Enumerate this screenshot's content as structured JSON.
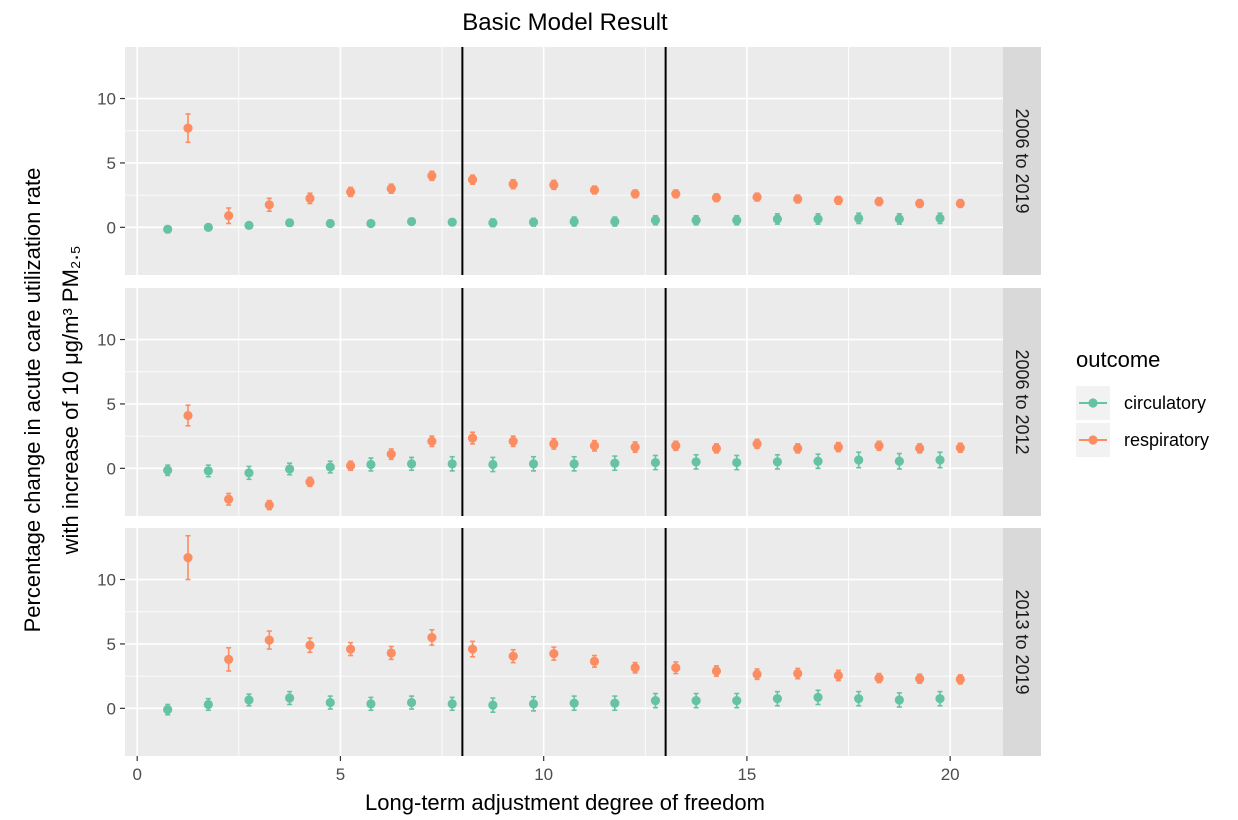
{
  "chart_data": {
    "type": "scatter",
    "title": "Basic Model Result",
    "xlabel": "Long-term adjustment degree of freedom",
    "ylabel_line1": "Percentage change in acute care utilization rate",
    "ylabel_line2": "with increase of 10 μg/m³ PM₂.₅",
    "xlim": [
      -0.3,
      21.3
    ],
    "ylim": [
      -3.7,
      14.0
    ],
    "x_ticks": [
      0,
      5,
      10,
      15,
      20
    ],
    "y_ticks": [
      0,
      5,
      10
    ],
    "grid": true,
    "vlines": [
      8,
      13
    ],
    "legend": {
      "title": "outcome",
      "position": "right",
      "entries": [
        {
          "label": "circulatory",
          "color": "#66C2A5"
        },
        {
          "label": "respiratory",
          "color": "#FC8D62"
        }
      ]
    },
    "panels": [
      {
        "label": "2006 to 2019",
        "series": [
          {
            "name": "circulatory",
            "color": "#66C2A5",
            "points": [
              [
                0.75,
                -0.15,
                0.25
              ],
              [
                1.75,
                0.0,
                0.25
              ],
              [
                2.75,
                0.15,
                0.25
              ],
              [
                3.75,
                0.35,
                0.25
              ],
              [
                4.75,
                0.3,
                0.25
              ],
              [
                5.75,
                0.3,
                0.25
              ],
              [
                6.75,
                0.45,
                0.25
              ],
              [
                7.75,
                0.4,
                0.25
              ],
              [
                8.75,
                0.35,
                0.3
              ],
              [
                9.75,
                0.4,
                0.3
              ],
              [
                10.75,
                0.45,
                0.35
              ],
              [
                11.75,
                0.45,
                0.35
              ],
              [
                12.75,
                0.55,
                0.35
              ],
              [
                13.75,
                0.55,
                0.35
              ],
              [
                14.75,
                0.55,
                0.35
              ],
              [
                15.75,
                0.65,
                0.4
              ],
              [
                16.75,
                0.65,
                0.4
              ],
              [
                17.75,
                0.7,
                0.4
              ],
              [
                18.75,
                0.65,
                0.4
              ],
              [
                19.75,
                0.7,
                0.4
              ]
            ]
          },
          {
            "name": "respiratory",
            "color": "#FC8D62",
            "points": [
              [
                1.25,
                7.7,
                1.1
              ],
              [
                2.25,
                0.9,
                0.6
              ],
              [
                3.25,
                1.75,
                0.5
              ],
              [
                4.25,
                2.25,
                0.4
              ],
              [
                5.25,
                2.75,
                0.35
              ],
              [
                6.25,
                3.0,
                0.35
              ],
              [
                7.25,
                4.0,
                0.35
              ],
              [
                8.25,
                3.7,
                0.35
              ],
              [
                9.25,
                3.35,
                0.35
              ],
              [
                10.25,
                3.3,
                0.35
              ],
              [
                11.25,
                2.9,
                0.3
              ],
              [
                12.25,
                2.6,
                0.3
              ],
              [
                13.25,
                2.6,
                0.3
              ],
              [
                14.25,
                2.3,
                0.3
              ],
              [
                15.25,
                2.35,
                0.3
              ],
              [
                16.25,
                2.2,
                0.3
              ],
              [
                17.25,
                2.1,
                0.3
              ],
              [
                18.25,
                2.0,
                0.3
              ],
              [
                19.25,
                1.85,
                0.3
              ],
              [
                20.25,
                1.85,
                0.3
              ]
            ]
          }
        ]
      },
      {
        "label": "2006 to 2012",
        "series": [
          {
            "name": "circulatory",
            "color": "#66C2A5",
            "points": [
              [
                0.75,
                -0.15,
                0.4
              ],
              [
                1.75,
                -0.2,
                0.45
              ],
              [
                2.75,
                -0.35,
                0.5
              ],
              [
                3.75,
                -0.05,
                0.45
              ],
              [
                4.75,
                0.1,
                0.45
              ],
              [
                5.75,
                0.3,
                0.5
              ],
              [
                6.75,
                0.35,
                0.5
              ],
              [
                7.75,
                0.35,
                0.55
              ],
              [
                8.75,
                0.3,
                0.55
              ],
              [
                9.75,
                0.35,
                0.55
              ],
              [
                10.75,
                0.35,
                0.55
              ],
              [
                11.75,
                0.4,
                0.55
              ],
              [
                12.75,
                0.45,
                0.55
              ],
              [
                13.75,
                0.5,
                0.55
              ],
              [
                14.75,
                0.45,
                0.55
              ],
              [
                15.75,
                0.5,
                0.55
              ],
              [
                16.75,
                0.55,
                0.55
              ],
              [
                17.75,
                0.65,
                0.6
              ],
              [
                18.75,
                0.55,
                0.6
              ],
              [
                19.75,
                0.65,
                0.6
              ]
            ]
          },
          {
            "name": "respiratory",
            "color": "#FC8D62",
            "points": [
              [
                1.25,
                4.1,
                0.8
              ],
              [
                2.25,
                -2.4,
                0.45
              ],
              [
                3.25,
                -2.85,
                0.35
              ],
              [
                4.25,
                -1.05,
                0.35
              ],
              [
                5.25,
                0.2,
                0.35
              ],
              [
                6.25,
                1.1,
                0.4
              ],
              [
                7.25,
                2.1,
                0.4
              ],
              [
                8.25,
                2.35,
                0.45
              ],
              [
                9.25,
                2.1,
                0.4
              ],
              [
                10.25,
                1.9,
                0.4
              ],
              [
                11.25,
                1.75,
                0.4
              ],
              [
                12.25,
                1.65,
                0.4
              ],
              [
                13.25,
                1.75,
                0.35
              ],
              [
                14.25,
                1.55,
                0.35
              ],
              [
                15.25,
                1.9,
                0.35
              ],
              [
                16.25,
                1.55,
                0.35
              ],
              [
                17.25,
                1.65,
                0.35
              ],
              [
                18.25,
                1.75,
                0.35
              ],
              [
                19.25,
                1.55,
                0.35
              ],
              [
                20.25,
                1.6,
                0.35
              ]
            ]
          }
        ]
      },
      {
        "label": "2013 to 2019",
        "series": [
          {
            "name": "circulatory",
            "color": "#66C2A5",
            "points": [
              [
                0.75,
                -0.1,
                0.4
              ],
              [
                1.75,
                0.3,
                0.45
              ],
              [
                2.75,
                0.65,
                0.45
              ],
              [
                3.75,
                0.8,
                0.5
              ],
              [
                4.75,
                0.45,
                0.5
              ],
              [
                5.75,
                0.35,
                0.5
              ],
              [
                6.75,
                0.45,
                0.5
              ],
              [
                7.75,
                0.35,
                0.5
              ],
              [
                8.75,
                0.25,
                0.55
              ],
              [
                9.75,
                0.35,
                0.55
              ],
              [
                10.75,
                0.4,
                0.55
              ],
              [
                11.75,
                0.4,
                0.55
              ],
              [
                12.75,
                0.6,
                0.55
              ],
              [
                13.75,
                0.6,
                0.55
              ],
              [
                14.75,
                0.6,
                0.55
              ],
              [
                15.75,
                0.75,
                0.55
              ],
              [
                16.75,
                0.85,
                0.55
              ],
              [
                17.75,
                0.75,
                0.55
              ],
              [
                18.75,
                0.65,
                0.55
              ],
              [
                19.75,
                0.75,
                0.55
              ]
            ]
          },
          {
            "name": "respiratory",
            "color": "#FC8D62",
            "points": [
              [
                1.25,
                11.7,
                1.7
              ],
              [
                2.25,
                3.8,
                0.9
              ],
              [
                3.25,
                5.3,
                0.7
              ],
              [
                4.25,
                4.9,
                0.55
              ],
              [
                5.25,
                4.6,
                0.5
              ],
              [
                6.25,
                4.3,
                0.5
              ],
              [
                7.25,
                5.5,
                0.6
              ],
              [
                8.25,
                4.6,
                0.6
              ],
              [
                9.25,
                4.05,
                0.5
              ],
              [
                10.25,
                4.25,
                0.5
              ],
              [
                11.25,
                3.65,
                0.45
              ],
              [
                12.25,
                3.15,
                0.4
              ],
              [
                13.25,
                3.15,
                0.45
              ],
              [
                14.25,
                2.9,
                0.4
              ],
              [
                15.25,
                2.65,
                0.4
              ],
              [
                16.25,
                2.7,
                0.4
              ],
              [
                17.25,
                2.55,
                0.4
              ],
              [
                18.25,
                2.35,
                0.35
              ],
              [
                19.25,
                2.3,
                0.35
              ],
              [
                20.25,
                2.25,
                0.35
              ]
            ]
          }
        ]
      }
    ]
  }
}
